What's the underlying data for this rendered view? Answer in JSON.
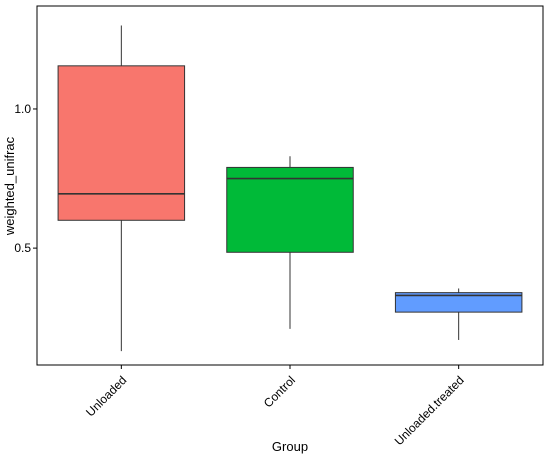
{
  "chart_data": {
    "type": "box",
    "xlabel": "Group",
    "ylabel": "weighted_unifrac",
    "ylim": [
      0.08,
      1.37
    ],
    "yticks": [
      {
        "value": 0.5,
        "label": "0.5"
      },
      {
        "value": 1.0,
        "label": "1.0"
      }
    ],
    "grid": false,
    "legend": "none",
    "categories": [
      "Unloaded",
      "Control",
      "Unloaded.treated"
    ],
    "series": [
      {
        "category": "Unloaded",
        "color": "#F8766D",
        "whisker_low": 0.13,
        "q1": 0.6,
        "median": 0.695,
        "q3": 1.155,
        "whisker_high": 1.3
      },
      {
        "category": "Control",
        "color": "#00BA38",
        "whisker_low": 0.21,
        "q1": 0.485,
        "median": 0.75,
        "q3": 0.79,
        "whisker_high": 0.83
      },
      {
        "category": "Unloaded.treated",
        "color": "#619CFF",
        "whisker_low": 0.17,
        "q1": 0.27,
        "median": 0.33,
        "q3": 0.34,
        "whisker_high": 0.355
      }
    ]
  }
}
